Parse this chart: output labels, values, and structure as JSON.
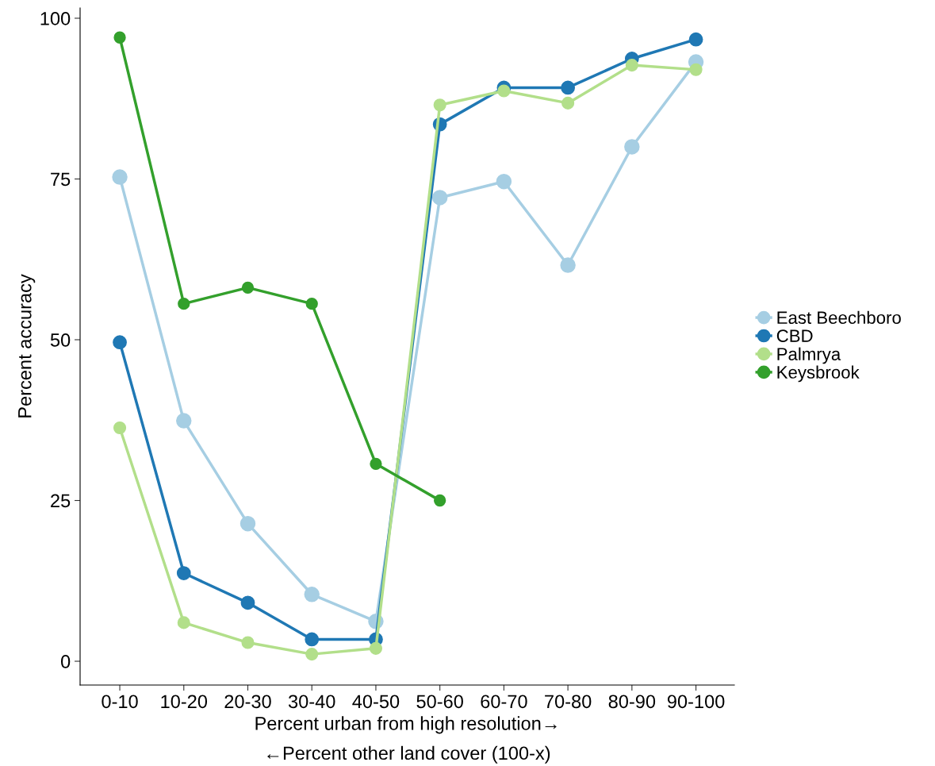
{
  "chart_data": {
    "type": "line",
    "xlabel": "Percent urban from high resolution→\n←Percent other land cover (100-x)",
    "ylabel": "Percent accuracy",
    "categories": [
      "0-10",
      "10-20",
      "20-30",
      "30-40",
      "40-50",
      "50-60",
      "60-70",
      "70-80",
      "80-90",
      "90-100"
    ],
    "series": [
      {
        "name": "East Beechboro",
        "color": "#a6cee3",
        "values": [
          75.3,
          37.4,
          21.4,
          10.4,
          6.2,
          72.1,
          74.6,
          61.6,
          80.0,
          93.2
        ]
      },
      {
        "name": "CBD",
        "color": "#1f78b4",
        "values": [
          49.6,
          13.7,
          9.1,
          3.4,
          3.4,
          83.5,
          89.2,
          89.2,
          93.7,
          96.7
        ]
      },
      {
        "name": "Palmrya",
        "color": "#b2df8a",
        "values": [
          36.3,
          6.0,
          2.9,
          1.1,
          2.0,
          86.5,
          88.7,
          86.8,
          92.7,
          92.0
        ]
      },
      {
        "name": "Keysbrook",
        "color": "#33a02c",
        "values": [
          97.0,
          55.6,
          58.1,
          55.6,
          30.7,
          25.0,
          null,
          null,
          null,
          null
        ]
      }
    ],
    "ylim": [
      -3.7,
      101.6
    ],
    "yticks": [
      0,
      25,
      50,
      75,
      100
    ],
    "grid": false,
    "legend": "right",
    "marker": "circle",
    "line_style": "solid"
  }
}
